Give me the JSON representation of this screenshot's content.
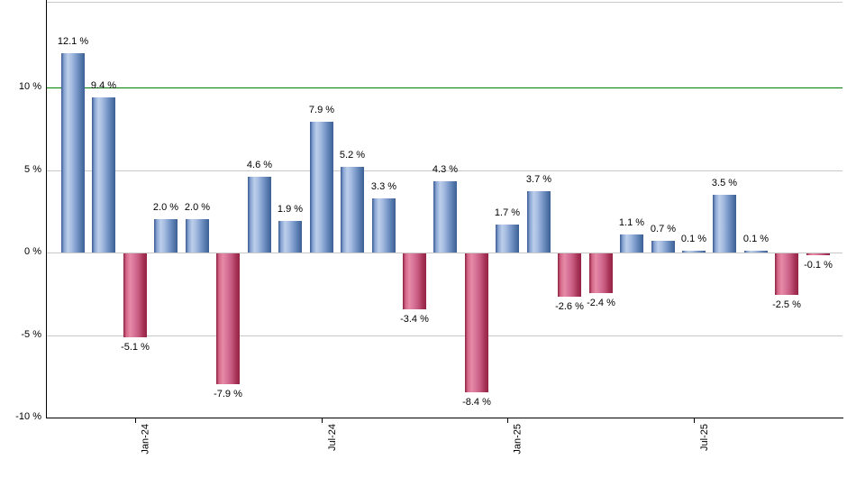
{
  "chart_data": {
    "type": "bar",
    "title": "",
    "unit": "%",
    "values": [
      12.1,
      9.4,
      -5.1,
      2.0,
      2.0,
      -7.9,
      4.6,
      1.9,
      7.9,
      5.2,
      3.3,
      -3.4,
      4.3,
      -8.4,
      1.7,
      3.7,
      -2.6,
      -2.4,
      1.1,
      0.7,
      0.1,
      3.5,
      0.1,
      -2.5,
      -0.1
    ],
    "data_labels": [
      "12.1 %",
      "9.4 %",
      "-5.1 %",
      "2.0 %",
      "2.0 %",
      "-7.9 %",
      "4.6 %",
      "1.9 %",
      "7.9 %",
      "5.2 %",
      "3.3 %",
      "-3.4 %",
      "4.3 %",
      "-8.4 %",
      "1.7 %",
      "3.7 %",
      "-2.6 %",
      "-2.4 %",
      "1.1 %",
      "0.7 %",
      "0.1 %",
      "3.5 %",
      "0.1 %",
      "-2.5 %",
      "-0.1 %"
    ],
    "x_axis": {
      "ticks": [
        {
          "bar_index": 2,
          "label": "Jan-24"
        },
        {
          "bar_index": 8,
          "label": "Jul-24"
        },
        {
          "bar_index": 14,
          "label": "Jan-25"
        },
        {
          "bar_index": 20,
          "label": "Jul-25"
        }
      ]
    },
    "y_axis": {
      "ticks": [
        {
          "value": 10,
          "label": "10 %"
        },
        {
          "value": 5,
          "label": "5 %"
        },
        {
          "value": 0,
          "label": "0 %"
        },
        {
          "value": -5,
          "label": "-5 %"
        },
        {
          "value": -10,
          "label": "-10 %"
        }
      ],
      "ylim": [
        -10,
        15.2
      ],
      "grid": true
    },
    "reference_line": {
      "value": 10,
      "color": "#008000"
    },
    "colors": {
      "grid": "#c8c8c8",
      "frame": "#c9c9c9",
      "axis": "#000000",
      "background": "#ffffff",
      "positive_stops": [
        [
          "#3a5a91",
          0
        ],
        [
          "#89a5d3",
          12
        ],
        [
          "#bccfeb",
          28
        ],
        [
          "#a5bbe0",
          45
        ],
        [
          "#7b99ca",
          65
        ],
        [
          "#5478ab",
          85
        ],
        [
          "#3d6094",
          100
        ]
      ],
      "negative_stops": [
        [
          "#8e1f3e",
          0
        ],
        [
          "#d4688a",
          12
        ],
        [
          "#e68aa6",
          28
        ],
        [
          "#d8759a",
          45
        ],
        [
          "#c65a7e",
          65
        ],
        [
          "#a63357",
          85
        ],
        [
          "#932345",
          100
        ]
      ]
    },
    "legend": null
  }
}
